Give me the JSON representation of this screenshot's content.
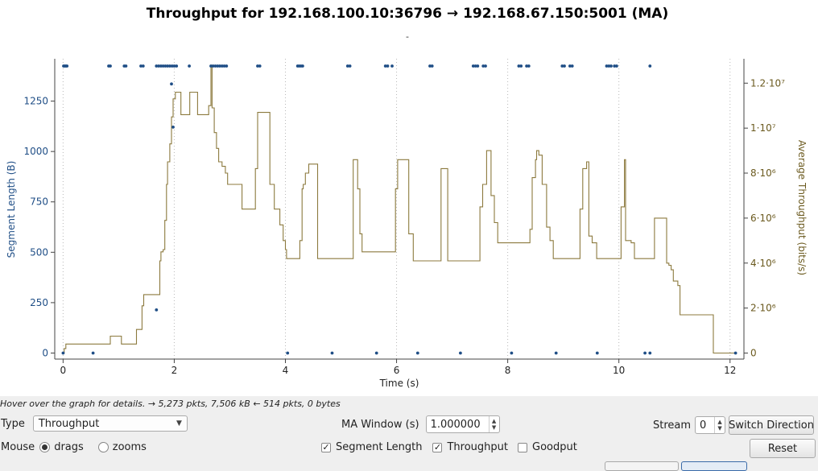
{
  "chart_data": {
    "type": "line",
    "title": "Throughput for 192.168.100.10:36796 → 192.168.67.150:5001 (MA)",
    "subtitle": "-",
    "xlabel": "Time (s)",
    "ylabel_left": "Segment Length (B)",
    "ylabel_right": "Average Throughput (bits/s)",
    "xlim": [
      -0.15,
      12.25
    ],
    "ylim_left": [
      -30,
      1460
    ],
    "ylim_right": [
      -269000,
      13084000
    ],
    "x_ticks": [
      0,
      2,
      4,
      6,
      8,
      10,
      12
    ],
    "y_left_ticks": [
      0,
      250,
      500,
      750,
      1000,
      1250
    ],
    "y_right_ticks": [
      {
        "value": 0,
        "label": "0"
      },
      {
        "value": 2000000,
        "label": "2·10⁶"
      },
      {
        "value": 4000000,
        "label": "4·10⁶"
      },
      {
        "value": 6000000,
        "label": "6·10⁶"
      },
      {
        "value": 8000000,
        "label": "8·10⁶"
      },
      {
        "value": 10000000,
        "label": "1·10⁷"
      },
      {
        "value": 12000000,
        "label": "1.2·10⁷"
      }
    ],
    "grid": "x-dotted",
    "colors": {
      "segment": "#1f4e86",
      "throughput": "#8c7a3e",
      "axis_right": "#6b5a1f"
    },
    "series": [
      {
        "name": "Segment Length",
        "axis": "left",
        "style": "points",
        "points": [
          [
            0.01,
            1424
          ],
          [
            0.03,
            1424
          ],
          [
            0.05,
            1424
          ],
          [
            0.07,
            1424
          ],
          [
            0.82,
            1424
          ],
          [
            0.85,
            1424
          ],
          [
            1.1,
            1424
          ],
          [
            1.13,
            1424
          ],
          [
            1.4,
            1424
          ],
          [
            1.44,
            1424
          ],
          [
            1.68,
            1424
          ],
          [
            1.72,
            1424
          ],
          [
            1.76,
            1424
          ],
          [
            1.8,
            1424
          ],
          [
            1.84,
            1424
          ],
          [
            1.88,
            1424
          ],
          [
            1.92,
            1424
          ],
          [
            1.96,
            1424
          ],
          [
            2.0,
            1424
          ],
          [
            2.04,
            1424
          ],
          [
            2.27,
            1424
          ],
          [
            2.66,
            1424
          ],
          [
            2.7,
            1424
          ],
          [
            2.74,
            1424
          ],
          [
            2.78,
            1424
          ],
          [
            2.82,
            1424
          ],
          [
            2.86,
            1424
          ],
          [
            2.9,
            1424
          ],
          [
            2.94,
            1424
          ],
          [
            3.5,
            1424
          ],
          [
            3.54,
            1424
          ],
          [
            4.22,
            1424
          ],
          [
            4.25,
            1424
          ],
          [
            4.28,
            1424
          ],
          [
            4.31,
            1424
          ],
          [
            5.12,
            1424
          ],
          [
            5.16,
            1424
          ],
          [
            5.8,
            1424
          ],
          [
            5.84,
            1424
          ],
          [
            5.92,
            1424
          ],
          [
            6.6,
            1424
          ],
          [
            6.64,
            1424
          ],
          [
            7.38,
            1424
          ],
          [
            7.42,
            1424
          ],
          [
            7.46,
            1424
          ],
          [
            7.56,
            1424
          ],
          [
            7.6,
            1424
          ],
          [
            8.2,
            1424
          ],
          [
            8.24,
            1424
          ],
          [
            8.34,
            1424
          ],
          [
            8.38,
            1424
          ],
          [
            8.98,
            1424
          ],
          [
            9.02,
            1424
          ],
          [
            9.12,
            1424
          ],
          [
            9.16,
            1424
          ],
          [
            9.78,
            1424
          ],
          [
            9.82,
            1424
          ],
          [
            9.86,
            1424
          ],
          [
            9.92,
            1424
          ],
          [
            9.96,
            1424
          ],
          [
            10.56,
            1424
          ],
          [
            1.95,
            1335
          ],
          [
            1.98,
            1121
          ],
          [
            1.68,
            214
          ],
          [
            0,
            0
          ],
          [
            0.54,
            0
          ],
          [
            4.04,
            0
          ],
          [
            4.84,
            0
          ],
          [
            5.64,
            0
          ],
          [
            6.38,
            0
          ],
          [
            7.15,
            0
          ],
          [
            8.07,
            0
          ],
          [
            8.87,
            0
          ],
          [
            9.61,
            0
          ],
          [
            10.47,
            0
          ],
          [
            10.56,
            0
          ],
          [
            12.1,
            0
          ]
        ]
      },
      {
        "name": "Throughput",
        "axis": "right",
        "style": "step",
        "points": [
          [
            0,
            0
          ],
          [
            0.02,
            200000
          ],
          [
            0.05,
            400000
          ],
          [
            0.5,
            400000
          ],
          [
            0.56,
            400000
          ],
          [
            0.6,
            400000
          ],
          [
            0.8,
            400000
          ],
          [
            0.85,
            750000
          ],
          [
            1.0,
            750000
          ],
          [
            1.05,
            400000
          ],
          [
            1.1,
            400000
          ],
          [
            1.3,
            400000
          ],
          [
            1.32,
            1050000
          ],
          [
            1.4,
            1050000
          ],
          [
            1.42,
            2100000
          ],
          [
            1.45,
            2600000
          ],
          [
            1.72,
            2600000
          ],
          [
            1.74,
            4100000
          ],
          [
            1.76,
            4500000
          ],
          [
            1.8,
            4600000
          ],
          [
            1.83,
            5900000
          ],
          [
            1.86,
            7500000
          ],
          [
            1.88,
            8500000
          ],
          [
            1.92,
            9300000
          ],
          [
            1.95,
            10500000
          ],
          [
            1.98,
            11300000
          ],
          [
            2.02,
            11600000
          ],
          [
            2.08,
            11600000
          ],
          [
            2.12,
            10600000
          ],
          [
            2.24,
            10600000
          ],
          [
            2.28,
            11600000
          ],
          [
            2.38,
            11600000
          ],
          [
            2.42,
            10600000
          ],
          [
            2.6,
            10600000
          ],
          [
            2.62,
            11000000
          ],
          [
            2.66,
            12800000
          ],
          [
            2.68,
            10900000
          ],
          [
            2.72,
            9800000
          ],
          [
            2.76,
            9100000
          ],
          [
            2.8,
            8500000
          ],
          [
            2.86,
            8300000
          ],
          [
            2.92,
            8000000
          ],
          [
            2.96,
            7500000
          ],
          [
            3.2,
            7500000
          ],
          [
            3.22,
            6400000
          ],
          [
            3.44,
            6400000
          ],
          [
            3.46,
            8200000
          ],
          [
            3.5,
            10700000
          ],
          [
            3.7,
            10700000
          ],
          [
            3.72,
            7500000
          ],
          [
            3.8,
            6400000
          ],
          [
            3.9,
            5700000
          ],
          [
            3.96,
            5000000
          ],
          [
            4.0,
            4600000
          ],
          [
            4.02,
            4200000
          ],
          [
            4.22,
            4200000
          ],
          [
            4.26,
            5000000
          ],
          [
            4.3,
            7300000
          ],
          [
            4.32,
            7500000
          ],
          [
            4.36,
            8000000
          ],
          [
            4.42,
            8400000
          ],
          [
            4.56,
            8400000
          ],
          [
            4.58,
            4200000
          ],
          [
            5.18,
            4200000
          ],
          [
            5.22,
            8600000
          ],
          [
            5.28,
            8600000
          ],
          [
            5.3,
            7300000
          ],
          [
            5.34,
            5300000
          ],
          [
            5.38,
            4500000
          ],
          [
            5.95,
            4500000
          ],
          [
            5.98,
            7300000
          ],
          [
            6.02,
            8600000
          ],
          [
            6.2,
            8600000
          ],
          [
            6.22,
            5300000
          ],
          [
            6.3,
            4100000
          ],
          [
            6.78,
            4100000
          ],
          [
            6.8,
            8200000
          ],
          [
            6.9,
            8200000
          ],
          [
            6.92,
            4100000
          ],
          [
            7.48,
            4100000
          ],
          [
            7.5,
            6500000
          ],
          [
            7.55,
            7500000
          ],
          [
            7.62,
            9000000
          ],
          [
            7.68,
            9000000
          ],
          [
            7.7,
            7000000
          ],
          [
            7.76,
            5800000
          ],
          [
            7.82,
            4900000
          ],
          [
            8.38,
            4900000
          ],
          [
            8.4,
            5500000
          ],
          [
            8.44,
            7800000
          ],
          [
            8.5,
            8600000
          ],
          [
            8.52,
            9000000
          ],
          [
            8.56,
            8800000
          ],
          [
            8.62,
            7500000
          ],
          [
            8.7,
            5600000
          ],
          [
            8.76,
            5000000
          ],
          [
            8.82,
            4200000
          ],
          [
            9.28,
            4200000
          ],
          [
            9.3,
            6400000
          ],
          [
            9.35,
            8200000
          ],
          [
            9.42,
            8500000
          ],
          [
            9.46,
            5200000
          ],
          [
            9.52,
            4900000
          ],
          [
            9.6,
            4200000
          ],
          [
            10.02,
            4200000
          ],
          [
            10.04,
            6500000
          ],
          [
            10.1,
            8600000
          ],
          [
            10.12,
            5000000
          ],
          [
            10.22,
            4900000
          ],
          [
            10.28,
            4200000
          ],
          [
            10.62,
            4200000
          ],
          [
            10.64,
            6000000
          ],
          [
            10.84,
            6000000
          ],
          [
            10.86,
            4000000
          ],
          [
            10.9,
            3900000
          ],
          [
            10.94,
            3700000
          ],
          [
            10.98,
            3200000
          ],
          [
            11.06,
            3000000
          ],
          [
            11.1,
            1700000
          ],
          [
            11.68,
            1700000
          ],
          [
            11.7,
            0
          ],
          [
            12.1,
            0
          ]
        ]
      }
    ]
  },
  "status_hint": "Hover over the graph for details. → 5,273 pkts, 7,506 kB ← 514 pkts, 0 bytes",
  "controls": {
    "type_label": "Type",
    "type_value": "Throughput",
    "ma_window_label": "MA Window (s)",
    "ma_window_value": "1.000000",
    "stream_label": "Stream",
    "stream_value": "0",
    "switch_direction": "Switch Direction",
    "mouse_label": "Mouse",
    "mouse_drags": "drags",
    "mouse_zooms": "zooms",
    "show_segment_length": "Segment Length",
    "show_throughput": "Throughput",
    "show_goodput": "Goodput",
    "reset": "Reset"
  }
}
